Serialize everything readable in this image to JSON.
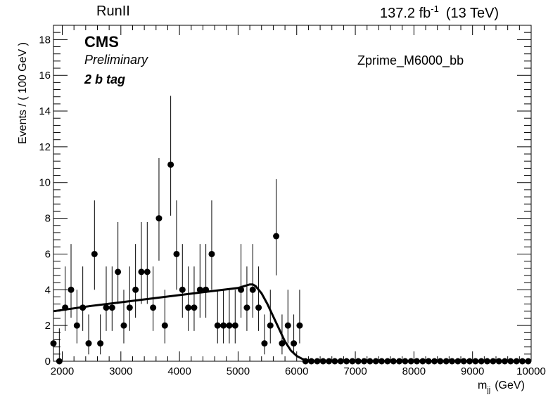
{
  "header": {
    "left": "RunII",
    "lumi_value": "137.2 fb",
    "lumi_exp": "-1",
    "energy": "(13 TeV)"
  },
  "labels": {
    "cms": "CMS",
    "preliminary": "Preliminary",
    "tag": "2 b tag",
    "sample": "Zprime_M6000_bb"
  },
  "chart_data": {
    "type": "scatter",
    "xlabel_main": "m",
    "xlabel_sub": "jj",
    "xlabel_unit": "(GeV)",
    "ylabel": "Events / ( 100 GeV )",
    "xlim": [
      1850,
      10000
    ],
    "ylim": [
      0,
      18.8
    ],
    "x_ticks": [
      2000,
      3000,
      4000,
      5000,
      6000,
      7000,
      8000,
      9000,
      10000
    ],
    "y_ticks": [
      0,
      2,
      4,
      6,
      8,
      10,
      12,
      14,
      16,
      18
    ],
    "series": [
      {
        "kind": "data-points-with-errors",
        "x": [
          1850,
          1950,
          2050,
          2150,
          2250,
          2350,
          2450,
          2550,
          2650,
          2750,
          2850,
          2950,
          3050,
          3150,
          3250,
          3350,
          3450,
          3550,
          3650,
          3750,
          3850,
          3950,
          4050,
          4150,
          4250,
          4350,
          4450,
          4550,
          4650,
          4750,
          4850,
          4950,
          5050,
          5150,
          5250,
          5350,
          5450,
          5550,
          5650,
          5750,
          5850,
          5950,
          6050,
          6150,
          6250,
          6350,
          6450,
          6550,
          6650,
          6750,
          6850,
          6950,
          7050,
          7150,
          7250,
          7350,
          7450,
          7550,
          7650,
          7750,
          7850,
          7950,
          8050,
          8150,
          8250,
          8350,
          8450,
          8550,
          8650,
          8750,
          8850,
          8950,
          9050,
          9150,
          9250,
          9350,
          9450,
          9550,
          9650,
          9750,
          9850,
          9950
        ],
        "y": [
          1,
          0,
          3,
          4,
          2,
          3,
          1,
          6,
          1,
          3,
          3,
          5,
          2,
          3,
          4,
          5,
          5,
          3,
          8,
          2,
          11,
          6,
          4,
          3,
          3,
          4,
          4,
          6,
          2,
          2,
          2,
          2,
          4,
          3,
          4,
          3,
          1,
          2,
          7,
          1,
          2,
          1,
          2,
          0,
          0,
          0,
          0,
          0,
          0,
          0,
          0,
          0,
          0,
          0,
          0,
          0,
          0,
          0,
          0,
          0,
          0,
          0,
          0,
          0,
          0,
          0,
          0,
          0,
          0,
          0,
          0,
          0,
          0,
          0,
          0,
          0,
          0,
          0,
          0,
          0,
          0,
          0
        ]
      },
      {
        "kind": "fit-curve",
        "x": [
          1850,
          2500,
          3000,
          3500,
          4000,
          4500,
          5000,
          5100,
          5200,
          5250,
          5300,
          5400,
          5500,
          5600,
          5700,
          5800,
          5900,
          6000,
          6100,
          6200,
          6300,
          6400,
          6500
        ],
        "y": [
          2.8,
          3.1,
          3.3,
          3.5,
          3.7,
          3.9,
          4.1,
          4.2,
          4.3,
          4.3,
          4.2,
          3.8,
          3.2,
          2.5,
          1.8,
          1.1,
          0.6,
          0.3,
          0.12,
          0.04,
          0.01,
          0.0,
          0.0
        ]
      }
    ]
  }
}
